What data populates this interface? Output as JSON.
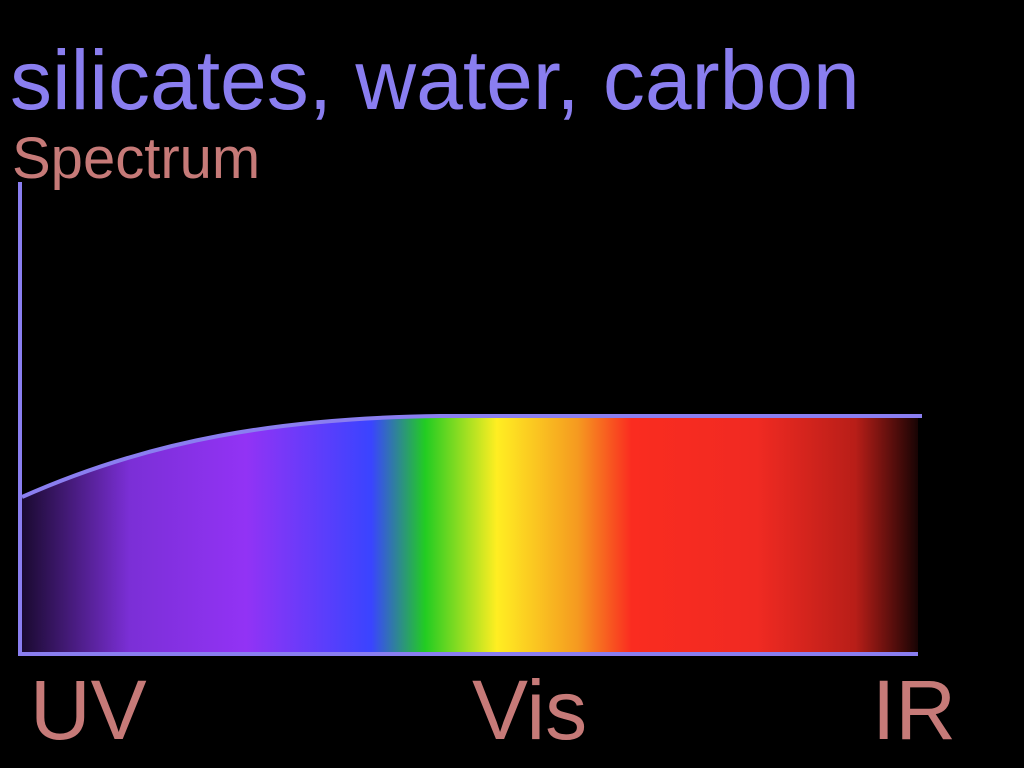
{
  "title": "silicates, water, carbon",
  "y_axis_label": "Spectrum",
  "x_axis_labels": [
    "UV",
    "Vis",
    "IR"
  ],
  "colors": {
    "background": "#000000",
    "axis": "#8a7ef0",
    "title": "#8a7ef0",
    "labels": "#c67a78",
    "spectrum": [
      "#1a0a30",
      "#7b2fd6",
      "#9233f5",
      "#3a44ff",
      "#22cc22",
      "#ffee22",
      "#f59a20",
      "#fa2c20",
      "#f02a22",
      "#b81e18",
      "#180404"
    ]
  },
  "curve": {
    "shape": "rises from UV then flat through visible and IR"
  }
}
